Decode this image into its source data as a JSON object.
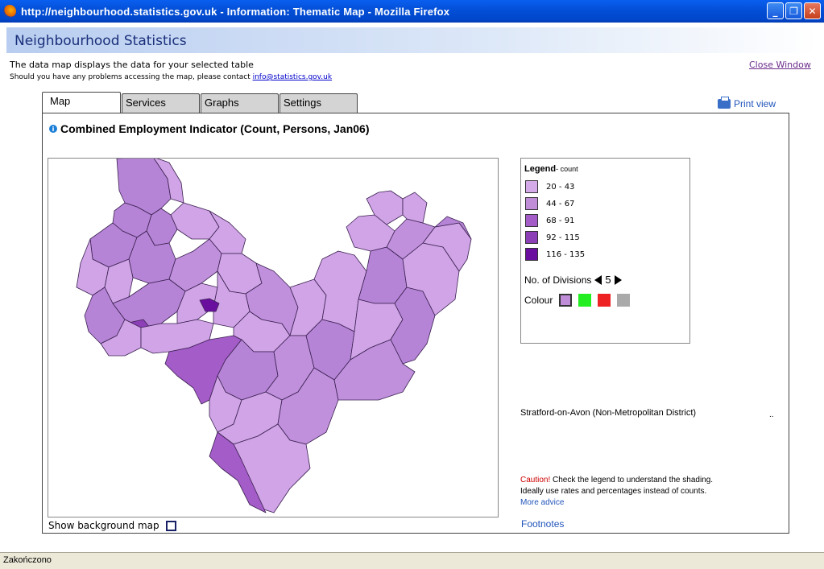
{
  "window": {
    "title": "http://neighbourhood.statistics.gov.uk - Information: Thematic Map - Mozilla Firefox",
    "buttons": [
      "_",
      "❐",
      "✕"
    ]
  },
  "site": {
    "title": "Neighbourhood Statistics"
  },
  "intro": {
    "line1": "The data map displays the data for your selected table",
    "line2_prefix": "Should you have any problems accessing the map, please contact ",
    "email": "info@statistics.gov.uk"
  },
  "close_window": "Close Window",
  "tabs": [
    {
      "label": "Map"
    },
    {
      "label": "Services"
    },
    {
      "label": "Graphs"
    },
    {
      "label": "Settings"
    }
  ],
  "print_view": "Print view",
  "heading": "Combined Employment Indicator (Count, Persons, Jan06)",
  "legend": {
    "title": "Legend",
    "unit": "- count",
    "ranges": [
      {
        "label": "20 - 43",
        "color": "#d4aae8"
      },
      {
        "label": "44 - 67",
        "color": "#c08ed9"
      },
      {
        "label": "68 - 91",
        "color": "#a45cc8"
      },
      {
        "label": "92 - 115",
        "color": "#8d3fb8"
      },
      {
        "label": "116 - 135",
        "color": "#6a0ea0"
      }
    ],
    "divisions_label": "No. of Divisions",
    "divisions_value": "5",
    "colour_label": "Colour",
    "colour_options": [
      "#c08ed9",
      "#22ee22",
      "#ee2222",
      "#aaaaaa"
    ]
  },
  "map": {
    "show_background_label": "Show background map",
    "show_background_checked": false
  },
  "selected_area": "Stratford-on-Avon (Non-Metropolitan District)",
  "selected_area_value": "..",
  "caution": {
    "word": "Caution!",
    "text1": " Check the legend to understand the shading.",
    "text2": "Ideally use rates and percentages instead of counts.",
    "more_advice": "More advice"
  },
  "footnotes": "Footnotes",
  "status": "Zakończono"
}
